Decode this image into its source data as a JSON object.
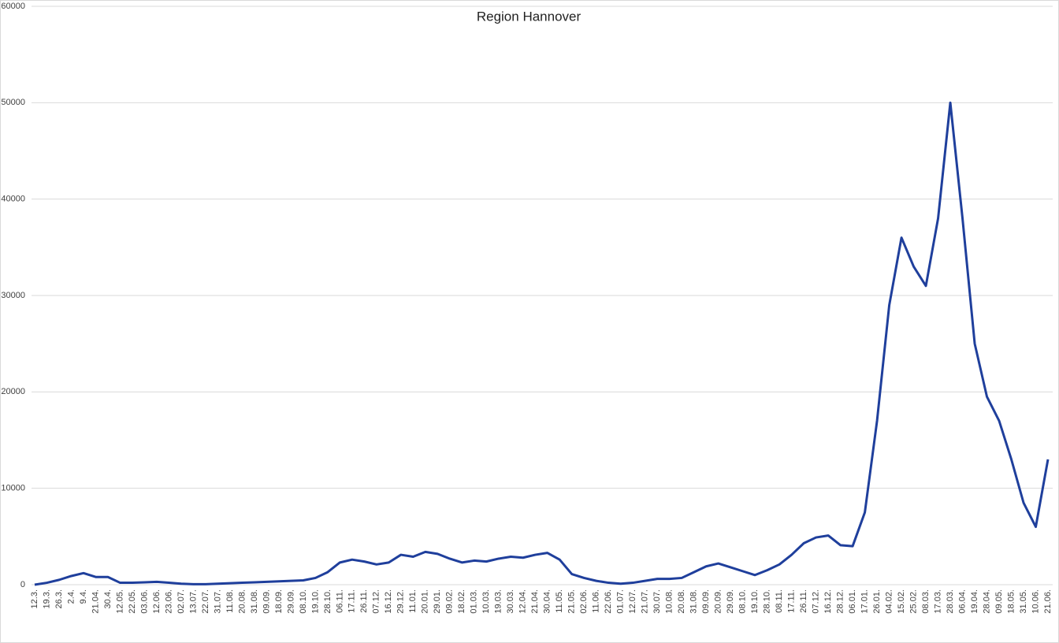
{
  "chart_data": {
    "type": "line",
    "title": "Region Hannover",
    "categories": [
      "12.3.",
      "19.3.",
      "26.3.",
      "2.4.",
      "9.4.",
      "21.04.",
      "30.4.",
      "12.05.",
      "22.05.",
      "03.06.",
      "12.06.",
      "23.06.",
      "02.07.",
      "13.07.",
      "22.07.",
      "31.07.",
      "11.08.",
      "20.08.",
      "31.08.",
      "09.09.",
      "18.09.",
      "29.09.",
      "08.10.",
      "19.10.",
      "28.10.",
      "06.11.",
      "17.11.",
      "26.11.",
      "07.12.",
      "16.12.",
      "29.12.",
      "11.01.",
      "20.01.",
      "29.01.",
      "09.02.",
      "18.02.",
      "01.03.",
      "10.03.",
      "19.03.",
      "30.03.",
      "12.04.",
      "21.04.",
      "30.04.",
      "11.05.",
      "21.05.",
      "02.06.",
      "11.06.",
      "22.06.",
      "01.07.",
      "12.07.",
      "21.07.",
      "30.07.",
      "10.08.",
      "20.08.",
      "31.08.",
      "09.09.",
      "20.09.",
      "29.09.",
      "08.10.",
      "19.10.",
      "28.10.",
      "08.11.",
      "17.11.",
      "26.11.",
      "07.12.",
      "16.12.",
      "28.12.",
      "06.01.",
      "17.01.",
      "26.01.",
      "04.02.",
      "15.02.",
      "25.02.",
      "08.03.",
      "17.03.",
      "28.03.",
      "06.04.",
      "19.04.",
      "28.04.",
      "09.05.",
      "18.05.",
      "31.05.",
      "10.06.",
      "21.06."
    ],
    "values": [
      0,
      200,
      500,
      900,
      1200,
      800,
      800,
      200,
      200,
      250,
      300,
      200,
      100,
      50,
      50,
      100,
      150,
      200,
      250,
      300,
      350,
      400,
      450,
      700,
      1300,
      2300,
      2600,
      2400,
      2100,
      2300,
      3100,
      2900,
      3400,
      3200,
      2700,
      2300,
      2500,
      2400,
      2700,
      2900,
      2800,
      3100,
      3300,
      2600,
      1100,
      700,
      400,
      200,
      100,
      200,
      400,
      600,
      600,
      700,
      1300,
      1900,
      2200,
      1800,
      1400,
      1000,
      1500,
      2100,
      3100,
      4300,
      4900,
      5100,
      4100,
      4000,
      7500,
      17000,
      29000,
      36000,
      33000,
      31000,
      38000,
      50000,
      38000,
      25000,
      19500,
      17000,
      13000,
      8500,
      6000,
      13000
    ],
    "color": "#1f3f9c",
    "ylim": [
      0,
      60000
    ],
    "yticks": [
      0,
      10000,
      20000,
      30000,
      40000,
      50000,
      60000
    ],
    "grid": true
  }
}
